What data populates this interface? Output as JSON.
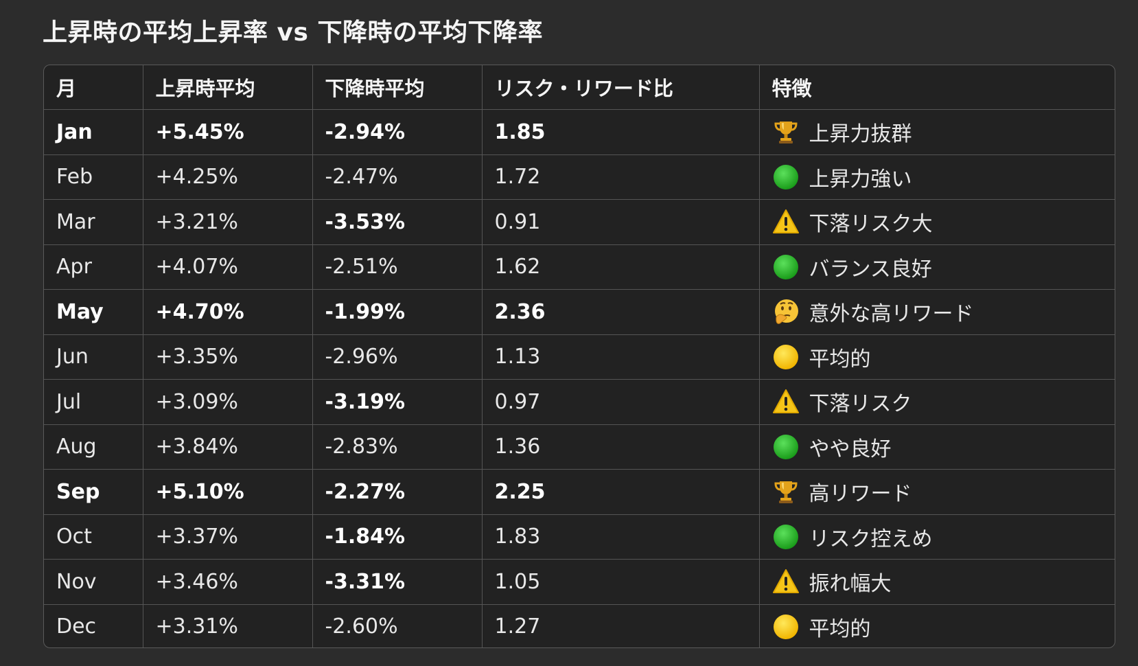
{
  "title": "上昇時の平均上昇率 vs 下降時の平均下降率",
  "headers": [
    "月",
    "上昇時平均",
    "下降時平均",
    "リスク・リワード比",
    "特徴"
  ],
  "rows": [
    {
      "month": "Jan",
      "up": "+5.45%",
      "down": "-2.94%",
      "ratio": "1.85",
      "icon": "trophy-icon",
      "feature": "上昇力抜群"
    },
    {
      "month": "Feb",
      "up": "+4.25%",
      "down": "-2.47%",
      "ratio": "1.72",
      "icon": "green-circle-icon",
      "feature": "上昇力強い"
    },
    {
      "month": "Mar",
      "up": "+3.21%",
      "down": "-3.53%",
      "ratio": "0.91",
      "icon": "warning-icon",
      "feature": "下落リスク大"
    },
    {
      "month": "Apr",
      "up": "+4.07%",
      "down": "-2.51%",
      "ratio": "1.62",
      "icon": "green-circle-icon",
      "feature": "バランス良好"
    },
    {
      "month": "May",
      "up": "+4.70%",
      "down": "-1.99%",
      "ratio": "2.36",
      "icon": "thinking-face-icon",
      "feature": "意外な高リワード"
    },
    {
      "month": "Jun",
      "up": "+3.35%",
      "down": "-2.96%",
      "ratio": "1.13",
      "icon": "yellow-circle-icon",
      "feature": "平均的"
    },
    {
      "month": "Jul",
      "up": "+3.09%",
      "down": "-3.19%",
      "ratio": "0.97",
      "icon": "warning-icon",
      "feature": "下落リスク"
    },
    {
      "month": "Aug",
      "up": "+3.84%",
      "down": "-2.83%",
      "ratio": "1.36",
      "icon": "green-circle-icon",
      "feature": "やや良好"
    },
    {
      "month": "Sep",
      "up": "+5.10%",
      "down": "-2.27%",
      "ratio": "2.25",
      "icon": "trophy-icon",
      "feature": "高リワード"
    },
    {
      "month": "Oct",
      "up": "+3.37%",
      "down": "-1.84%",
      "ratio": "1.83",
      "icon": "green-circle-icon",
      "feature": "リスク控えめ"
    },
    {
      "month": "Nov",
      "up": "+3.46%",
      "down": "-3.31%",
      "ratio": "1.05",
      "icon": "warning-icon",
      "feature": "振れ幅大"
    },
    {
      "month": "Dec",
      "up": "+3.31%",
      "down": "-2.60%",
      "ratio": "1.27",
      "icon": "yellow-circle-icon",
      "feature": "平均的"
    }
  ],
  "bold_rows": [
    "Jan",
    "May",
    "Sep"
  ],
  "bold_down_months": [
    "Mar",
    "Jul",
    "Oct",
    "Nov"
  ],
  "colors": {
    "background": "#2c2c2c",
    "table_background": "#222222",
    "border": "#555555",
    "text": "#e8e8e8"
  }
}
